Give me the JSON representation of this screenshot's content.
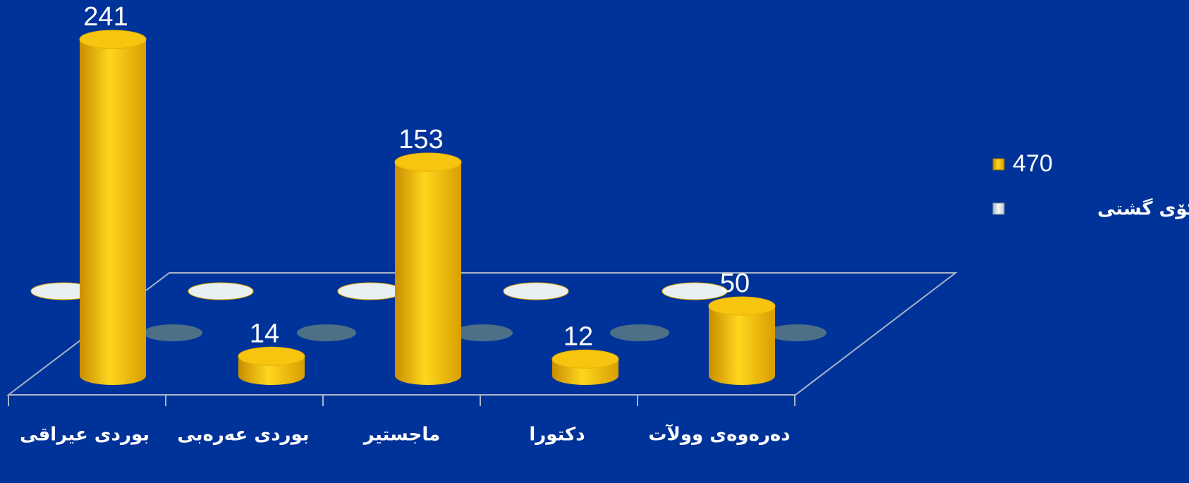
{
  "chart_data": {
    "type": "bar3d",
    "categories": [
      "بوردی عیراقی",
      "بوردی عەرەبی",
      "ماجستیر",
      "دکتورا",
      "دەرەوەی وولآت"
    ],
    "series": [
      {
        "name": "470",
        "color": "#f0b400",
        "values": [
          241,
          14,
          153,
          12,
          50
        ]
      },
      {
        "name": "کۆی گشتی",
        "color": "#dfe8ee",
        "values": [
          0,
          0,
          0,
          0,
          0
        ]
      }
    ],
    "ylim": [
      0,
      250
    ],
    "legend": "right"
  }
}
